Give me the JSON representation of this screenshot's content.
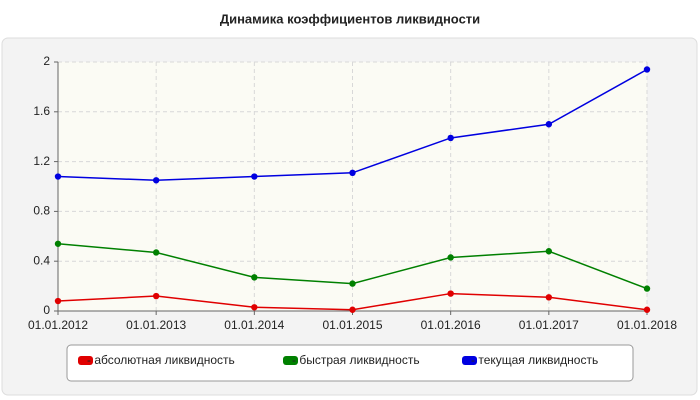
{
  "chart_data": {
    "type": "line",
    "title": "Динамика коэффициентов ликвидности",
    "categories": [
      "01.01.2012",
      "01.01.2013",
      "01.01.2014",
      "01.01.2015",
      "01.01.2016",
      "01.01.2017",
      "01.01.2018"
    ],
    "series": [
      {
        "name": "- абсолютная ликвидность",
        "color": "#e00000",
        "values": [
          0.08,
          0.12,
          0.03,
          0.01,
          0.14,
          0.11,
          0.01
        ]
      },
      {
        "name": "- быстрая ликвидность",
        "color": "#008000",
        "values": [
          0.54,
          0.47,
          0.27,
          0.22,
          0.43,
          0.48,
          0.18
        ]
      },
      {
        "name": "- текущая ликвидность",
        "color": "#0000e0",
        "values": [
          1.08,
          1.05,
          1.08,
          1.11,
          1.39,
          1.5,
          1.94
        ]
      }
    ],
    "ylim": [
      0,
      2
    ],
    "yticks": [
      0,
      0.4,
      0.8,
      1.2,
      1.6,
      2
    ],
    "grid": true,
    "legend": "bottom"
  }
}
